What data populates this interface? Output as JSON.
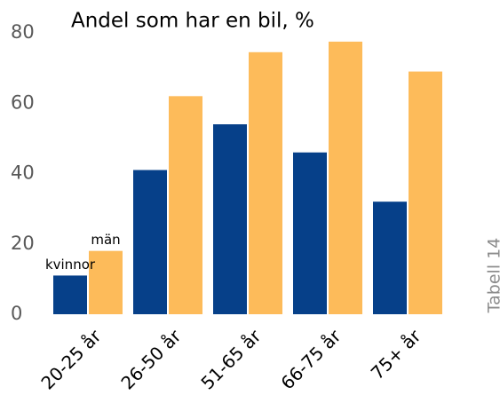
{
  "chart_data": {
    "type": "bar",
    "title": "Andel som har en bil, %",
    "categories": [
      "20-25 år",
      "26-50 år",
      "51-65 år",
      "66-75 år",
      "75+ år"
    ],
    "series": [
      {
        "name": "kvinnor",
        "color": "#064089",
        "values": [
          11,
          41,
          54,
          46,
          32
        ]
      },
      {
        "name": "män",
        "color": "#fdbb5a",
        "values": [
          18,
          62,
          74.5,
          77.5,
          69
        ]
      }
    ],
    "ylim": [
      0,
      80
    ],
    "yticks": [
      0,
      20,
      40,
      60,
      80
    ],
    "grid": false,
    "note": "Tabell 14"
  }
}
